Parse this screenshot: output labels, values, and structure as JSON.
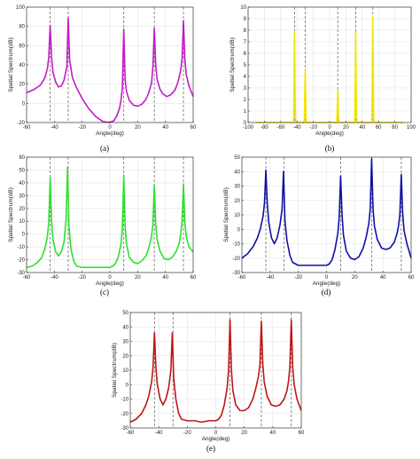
{
  "chart_data": [
    {
      "type": "line",
      "caption": "(a)",
      "color": "#c21bc8",
      "xlabel": "Angle(deg)",
      "ylabel": "Spatial Spectrum(dB)",
      "xlim": [
        -60,
        60
      ],
      "ylim": [
        -20,
        100
      ],
      "xticks": [
        -60,
        -40,
        -20,
        0,
        20,
        40,
        60
      ],
      "yticks": [
        -20,
        0,
        20,
        40,
        60,
        80,
        100
      ],
      "true_angles": [
        -43,
        -30,
        10,
        32,
        53
      ],
      "series": [
        {
          "x": [
            -60,
            -55,
            -50,
            -47,
            -45,
            -44,
            -43,
            -42,
            -41,
            -39,
            -37,
            -35,
            -33,
            -31,
            -30,
            -29,
            -27,
            -24,
            -20,
            -15,
            -10,
            -5,
            0,
            3,
            5,
            7,
            8,
            9,
            10,
            11,
            12,
            14,
            17,
            20,
            23,
            26,
            28,
            30,
            31,
            32,
            33,
            34,
            36,
            38,
            41,
            44,
            47,
            49,
            51,
            52,
            53,
            54,
            55,
            57,
            60
          ],
          "y": [
            11,
            14,
            19,
            26,
            36,
            48,
            81,
            48,
            32,
            22,
            17,
            18,
            24,
            38,
            89,
            45,
            27,
            16,
            5,
            -6,
            -14,
            -19,
            -20,
            -18,
            -13,
            -5,
            3,
            16,
            77,
            24,
            12,
            3,
            -2,
            -3,
            -1,
            4,
            11,
            21,
            38,
            78,
            40,
            25,
            15,
            10,
            7,
            9,
            14,
            22,
            34,
            46,
            86,
            46,
            30,
            18,
            7
          ]
        }
      ]
    },
    {
      "type": "line",
      "caption": "(b)",
      "color": "#f2e400",
      "xlabel": "Angle(deg)",
      "ylabel": "Spatial Spectrum(dB)",
      "xlim": [
        -100,
        100
      ],
      "ylim": [
        0,
        10
      ],
      "xticks": [
        -100,
        -80,
        -60,
        -40,
        -20,
        0,
        20,
        40,
        60,
        80,
        100
      ],
      "yticks": [
        0,
        1,
        2,
        3,
        4,
        5,
        6,
        7,
        8,
        9,
        10
      ],
      "true_angles": [
        -43,
        -30,
        10,
        32,
        53
      ],
      "series": [
        {
          "x": [
            -90,
            -44.5,
            -44,
            -43.5,
            -43,
            -42.5,
            -42,
            -41.5,
            -31.5,
            -31,
            -30.5,
            -30,
            -29.5,
            -29,
            -28.5,
            8.5,
            9,
            9.5,
            10,
            10.5,
            11,
            11.5,
            30.5,
            31,
            31.5,
            32,
            32.5,
            33,
            33.5,
            51.5,
            52,
            52.5,
            53,
            53.5,
            54,
            54.5,
            90
          ],
          "y": [
            0,
            0,
            0.5,
            4,
            7.9,
            4,
            0.5,
            0,
            0,
            0.3,
            2.5,
            4.5,
            2.5,
            0.3,
            0,
            0,
            0.3,
            1.5,
            2.8,
            1.5,
            0.3,
            0,
            0,
            0.5,
            4,
            7.8,
            4,
            0.5,
            0,
            0,
            0.6,
            5,
            9.2,
            5,
            0.6,
            0,
            0
          ]
        }
      ]
    },
    {
      "type": "line",
      "caption": "(c)",
      "color": "#2ee02e",
      "xlabel": "Angle(deg)",
      "ylabel": "Spatial Spectrum(dB)",
      "xlim": [
        -60,
        60
      ],
      "ylim": [
        -30,
        60
      ],
      "xticks": [
        -60,
        -40,
        -20,
        0,
        20,
        40,
        60
      ],
      "yticks": [
        -30,
        -20,
        -10,
        0,
        10,
        20,
        30,
        40,
        50,
        60
      ],
      "true_angles": [
        -43,
        -30,
        10,
        32,
        53
      ],
      "series": [
        {
          "x": [
            -60,
            -56,
            -52,
            -49,
            -47,
            -45,
            -44,
            -43,
            -42,
            -41,
            -39,
            -37,
            -35,
            -33,
            -31.5,
            -30.5,
            -29.5,
            -28,
            -26,
            -24,
            -20,
            -15,
            -10,
            -5,
            0,
            2,
            4,
            6,
            8,
            9,
            10,
            11,
            12,
            14,
            17,
            20,
            23,
            26,
            28,
            30,
            31,
            32,
            33,
            34,
            36,
            39,
            42,
            45,
            48,
            50,
            51,
            52,
            53,
            54,
            55,
            57,
            60
          ],
          "y": [
            -26,
            -25,
            -22,
            -18,
            -12,
            -2,
            10,
            44,
            10,
            -4,
            -14,
            -17,
            -14,
            -6,
            12,
            52,
            6,
            -12,
            -21,
            -25,
            -26,
            -26,
            -26,
            -26,
            -26,
            -25,
            -23,
            -18,
            -8,
            5,
            46,
            6,
            -8,
            -18,
            -22,
            -23,
            -21,
            -17,
            -11,
            -2,
            8,
            38,
            8,
            -4,
            -13,
            -19,
            -20,
            -18,
            -13,
            -7,
            0,
            10,
            39,
            10,
            -2,
            -10,
            -14
          ]
        }
      ]
    },
    {
      "type": "line",
      "caption": "(d)",
      "color": "#1010a4",
      "xlabel": "Angle(deg)",
      "ylabel": "Spatial Spectrum(dB)",
      "xlim": [
        -60,
        60
      ],
      "ylim": [
        -30,
        50
      ],
      "xticks": [
        -60,
        -40,
        -20,
        0,
        20,
        40,
        60
      ],
      "yticks": [
        -30,
        -20,
        -10,
        0,
        10,
        20,
        30,
        40,
        50
      ],
      "true_angles": [
        -43,
        -30,
        10,
        32,
        53
      ],
      "series": [
        {
          "x": [
            -60,
            -56,
            -52,
            -49,
            -47,
            -45,
            -44,
            -43,
            -42,
            -41,
            -39,
            -37,
            -35,
            -33,
            -31.5,
            -30.5,
            -29.5,
            -28,
            -26,
            -24,
            -20,
            -15,
            -10,
            -5,
            0,
            2,
            4,
            6,
            8,
            9,
            10,
            11,
            12,
            14,
            17,
            20,
            23,
            26,
            28,
            30,
            31,
            32,
            33,
            34,
            36,
            39,
            42,
            45,
            48,
            50,
            51,
            52,
            53,
            54,
            55,
            57,
            60
          ],
          "y": [
            -20,
            -17,
            -12,
            -6,
            0,
            9,
            18,
            41,
            18,
            5,
            -6,
            -10,
            -6,
            3,
            14,
            40,
            6,
            -8,
            -18,
            -23,
            -25,
            -25,
            -25,
            -25,
            -25,
            -24,
            -21,
            -14,
            -3,
            8,
            37,
            10,
            -4,
            -15,
            -20,
            -21,
            -19,
            -13,
            -6,
            4,
            14,
            49,
            14,
            2,
            -7,
            -13,
            -14,
            -13,
            -9,
            -3,
            2,
            10,
            38,
            11,
            -1,
            -10,
            -20
          ]
        }
      ]
    },
    {
      "type": "line",
      "caption": "(e)",
      "color": "#c01515",
      "xlabel": "Angle(deg)",
      "ylabel": "Spatial Spectrum(dB)",
      "xlim": [
        -60,
        60
      ],
      "ylim": [
        -30,
        50
      ],
      "xticks": [
        -60,
        -40,
        -20,
        0,
        20,
        40,
        60
      ],
      "yticks": [
        -30,
        -20,
        -10,
        0,
        10,
        20,
        30,
        40,
        50
      ],
      "true_angles": [
        -43,
        -30,
        10,
        32,
        53
      ],
      "series": [
        {
          "x": [
            -60,
            -56,
            -52,
            -49,
            -47,
            -45,
            -44,
            -43,
            -42,
            -41,
            -39,
            -37,
            -35,
            -33,
            -31.5,
            -30.5,
            -29.5,
            -28,
            -26,
            -24,
            -20,
            -15,
            -10,
            -5,
            0,
            2,
            4,
            6,
            8,
            9,
            10,
            11,
            12,
            14,
            17,
            20,
            23,
            26,
            28,
            30,
            31,
            32,
            33,
            34,
            36,
            39,
            42,
            45,
            48,
            50,
            51,
            52,
            53,
            54,
            55,
            57,
            60
          ],
          "y": [
            -26,
            -24,
            -20,
            -14,
            -8,
            2,
            12,
            36,
            12,
            0,
            -10,
            -14,
            -10,
            -2,
            10,
            36,
            4,
            -10,
            -20,
            -24,
            -25,
            -25,
            -26,
            -25,
            -25,
            -24,
            -21,
            -14,
            -2,
            10,
            45,
            10,
            -4,
            -14,
            -18,
            -18,
            -16,
            -10,
            -3,
            6,
            14,
            44,
            14,
            2,
            -8,
            -14,
            -15,
            -14,
            -10,
            -4,
            2,
            12,
            45,
            12,
            0,
            -10,
            -18
          ]
        }
      ]
    }
  ]
}
